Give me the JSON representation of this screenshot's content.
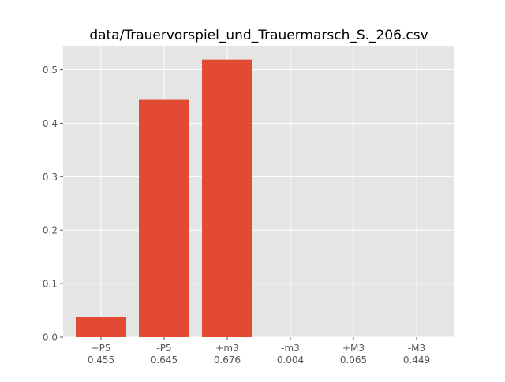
{
  "chart_data": {
    "type": "bar",
    "title": "data/Trauervorspiel_und_Trauermarsch_S._206.csv",
    "xlabel": "",
    "ylabel": "",
    "categories": [
      "+P5",
      "-P5",
      "+m3",
      "-m3",
      "+M3",
      "-M3"
    ],
    "category_sublabels": [
      "0.455",
      "0.645",
      "0.676",
      "0.004",
      "0.065",
      "0.449"
    ],
    "values": [
      0.037,
      0.444,
      0.519,
      0.0,
      0.0,
      0.0
    ],
    "ylim": [
      0,
      0.545
    ],
    "yticks": [
      "0.0",
      "0.1",
      "0.2",
      "0.3",
      "0.4",
      "0.5"
    ],
    "grid": true,
    "colors": {
      "bar": "#E24A33",
      "axes_bg": "#E5E5E5",
      "grid": "#FFFFFF",
      "text": "#555555",
      "title": "#000000"
    }
  }
}
